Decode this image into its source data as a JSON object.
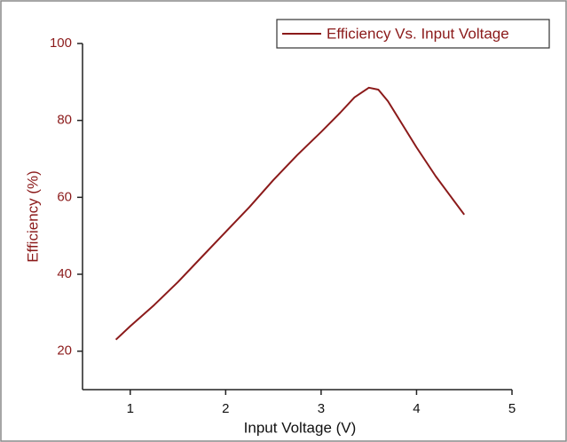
{
  "chart_data": {
    "type": "line",
    "xlabel": "Input Voltage (V)",
    "ylabel": "Efficiency (%)",
    "x": [
      0.85,
      1.0,
      1.25,
      1.5,
      1.75,
      2.0,
      2.25,
      2.5,
      2.75,
      3.0,
      3.2,
      3.35,
      3.5,
      3.6,
      3.7,
      3.85,
      4.0,
      4.2,
      4.35,
      4.5
    ],
    "series": [
      {
        "name": "Efficiency Vs. Input Voltage",
        "color": "#8b1a1a",
        "values": [
          23,
          26.5,
          32,
          38,
          44.5,
          51,
          57.5,
          64.5,
          71,
          77,
          82,
          86,
          88.5,
          88,
          85,
          79,
          73,
          65.5,
          60.5,
          55.5
        ]
      }
    ],
    "xlim": [
      0.5,
      5
    ],
    "xticks": [
      1,
      2,
      3,
      4,
      5
    ],
    "ylim": [
      10,
      100
    ],
    "yticks": [
      20,
      40,
      60,
      80,
      100
    ],
    "legend": "top-right"
  }
}
